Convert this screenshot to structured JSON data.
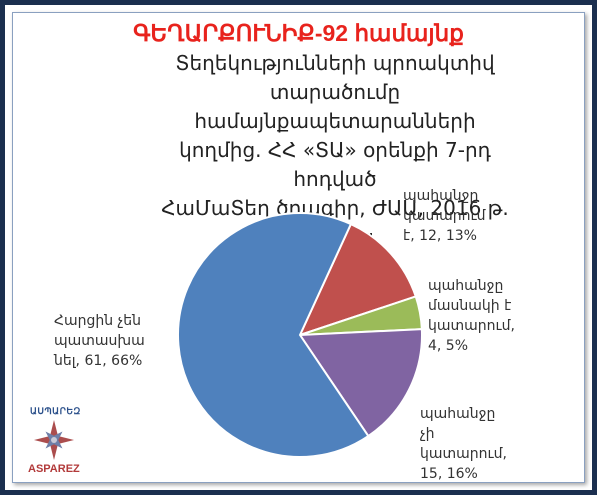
{
  "chart_data": {
    "type": "pie",
    "title": "ԳԵՂԱՐՔՈՒՆԻՔ-92 համայնք",
    "subtitle_lines": [
      "Տեղեկությունների պրոակտիվ",
      "տարածումը համայնքապետարանների",
      "կողմից. ՀՀ «ՏԱ» օրենքի 7-րդ հոդված",
      "ՀաՄաՏեղ ծրագիր, ԺԱԱ, 2016 թ. զեկույց"
    ],
    "slices": [
      {
        "label_lines": [
          "պահանջը",
          "կատարում",
          "է, 12, 13%"
        ],
        "value": 12,
        "percent": 13,
        "color": "#c0504d"
      },
      {
        "label_lines": [
          "պահանջը",
          "մասնակի է",
          "կատարում,",
          "4, 5%"
        ],
        "value": 4,
        "percent": 5,
        "color": "#9bbb59"
      },
      {
        "label_lines": [
          "պահանջը",
          "չի",
          "կատարում,",
          "15, 16%"
        ],
        "value": 15,
        "percent": 16,
        "color": "#8064a2"
      },
      {
        "label_lines": [
          "Հարցին չեն",
          "պատասխա",
          "նել, 61, 66%"
        ],
        "value": 61,
        "percent": 66,
        "color": "#4f81bd"
      }
    ]
  },
  "logo": {
    "top_text": "ԱՍՊԱՐԵԶ",
    "bottom_text": "ASPAREZ"
  }
}
